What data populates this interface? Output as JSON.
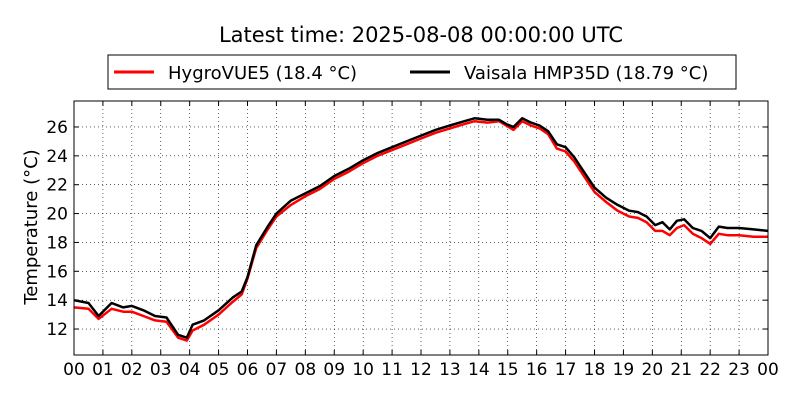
{
  "chart_data": {
    "type": "line",
    "title": "Latest time: 2025-08-08 00:00:00 UTC",
    "xlabel": "",
    "ylabel": "Temperature (°C)",
    "xlim": [
      0,
      24
    ],
    "ylim": [
      10.2,
      27.8
    ],
    "x_ticks": [
      0,
      1,
      2,
      3,
      4,
      5,
      6,
      7,
      8,
      9,
      10,
      11,
      12,
      13,
      14,
      15,
      16,
      17,
      18,
      19,
      20,
      21,
      22,
      23,
      24
    ],
    "x_tick_labels": [
      "00",
      "01",
      "02",
      "03",
      "04",
      "05",
      "06",
      "07",
      "08",
      "09",
      "10",
      "11",
      "12",
      "13",
      "14",
      "15",
      "16",
      "17",
      "18",
      "19",
      "20",
      "21",
      "22",
      "23",
      "00"
    ],
    "y_ticks": [
      12,
      14,
      16,
      18,
      20,
      22,
      24,
      26
    ],
    "y_tick_labels": [
      "12",
      "14",
      "16",
      "18",
      "20",
      "22",
      "24",
      "26"
    ],
    "grid": true,
    "legend_position": "top-center",
    "series": [
      {
        "name": "HygroVUE5 (18.4 °C)",
        "color": "#ff0000",
        "x": [
          0,
          0.5,
          0.85,
          1.3,
          1.7,
          2.0,
          2.4,
          2.8,
          3.2,
          3.6,
          3.9,
          4.1,
          4.5,
          5.0,
          5.5,
          5.8,
          6.0,
          6.3,
          6.7,
          7.0,
          7.5,
          8.0,
          8.5,
          9.0,
          9.5,
          10.0,
          10.5,
          11.0,
          11.5,
          12.0,
          12.5,
          13.0,
          13.5,
          13.85,
          14.3,
          14.7,
          14.95,
          15.2,
          15.5,
          15.8,
          16.1,
          16.4,
          16.7,
          17.0,
          17.3,
          17.6,
          18.0,
          18.4,
          18.8,
          19.2,
          19.5,
          19.8,
          20.1,
          20.35,
          20.6,
          20.85,
          21.1,
          21.4,
          21.7,
          22.0,
          22.3,
          22.6,
          23.0,
          23.5,
          24.0
        ],
        "y": [
          13.5,
          13.4,
          12.7,
          13.4,
          13.2,
          13.2,
          12.9,
          12.6,
          12.5,
          11.4,
          11.2,
          11.9,
          12.3,
          13.0,
          13.9,
          14.4,
          15.5,
          17.6,
          18.9,
          19.8,
          20.6,
          21.2,
          21.7,
          22.4,
          22.9,
          23.5,
          24.0,
          24.4,
          24.8,
          25.2,
          25.6,
          25.9,
          26.2,
          26.4,
          26.3,
          26.4,
          26.1,
          25.8,
          26.4,
          26.1,
          25.9,
          25.5,
          24.5,
          24.3,
          23.6,
          22.7,
          21.5,
          20.8,
          20.2,
          19.8,
          19.7,
          19.4,
          18.8,
          18.8,
          18.5,
          19.0,
          19.2,
          18.6,
          18.3,
          17.9,
          18.6,
          18.5,
          18.5,
          18.4,
          18.4
        ]
      },
      {
        "name": "Vaisala HMP35D (18.79 °C)",
        "color": "#000000",
        "x": [
          0,
          0.5,
          0.85,
          1.3,
          1.7,
          2.0,
          2.4,
          2.8,
          3.2,
          3.6,
          3.9,
          4.1,
          4.5,
          5.0,
          5.5,
          5.8,
          6.0,
          6.3,
          6.7,
          7.0,
          7.5,
          8.0,
          8.5,
          9.0,
          9.5,
          10.0,
          10.5,
          11.0,
          11.5,
          12.0,
          12.5,
          13.0,
          13.5,
          13.85,
          14.3,
          14.7,
          14.95,
          15.2,
          15.5,
          15.8,
          16.1,
          16.4,
          16.7,
          17.0,
          17.3,
          17.6,
          18.0,
          18.4,
          18.8,
          19.2,
          19.5,
          19.8,
          20.1,
          20.35,
          20.6,
          20.85,
          21.1,
          21.4,
          21.7,
          22.0,
          22.3,
          22.6,
          23.0,
          23.5,
          24.0
        ],
        "y": [
          14.0,
          13.8,
          12.9,
          13.8,
          13.5,
          13.6,
          13.3,
          12.9,
          12.8,
          11.6,
          11.4,
          12.3,
          12.6,
          13.3,
          14.2,
          14.6,
          15.6,
          17.8,
          19.1,
          20.0,
          20.9,
          21.4,
          21.9,
          22.6,
          23.1,
          23.7,
          24.2,
          24.6,
          25.0,
          25.4,
          25.8,
          26.1,
          26.4,
          26.6,
          26.5,
          26.5,
          26.2,
          26.0,
          26.6,
          26.3,
          26.1,
          25.7,
          24.8,
          24.6,
          23.9,
          23.0,
          21.8,
          21.1,
          20.6,
          20.2,
          20.1,
          19.8,
          19.2,
          19.4,
          18.9,
          19.5,
          19.6,
          19.0,
          18.8,
          18.3,
          19.1,
          19.0,
          19.0,
          18.9,
          18.8
        ]
      }
    ]
  }
}
